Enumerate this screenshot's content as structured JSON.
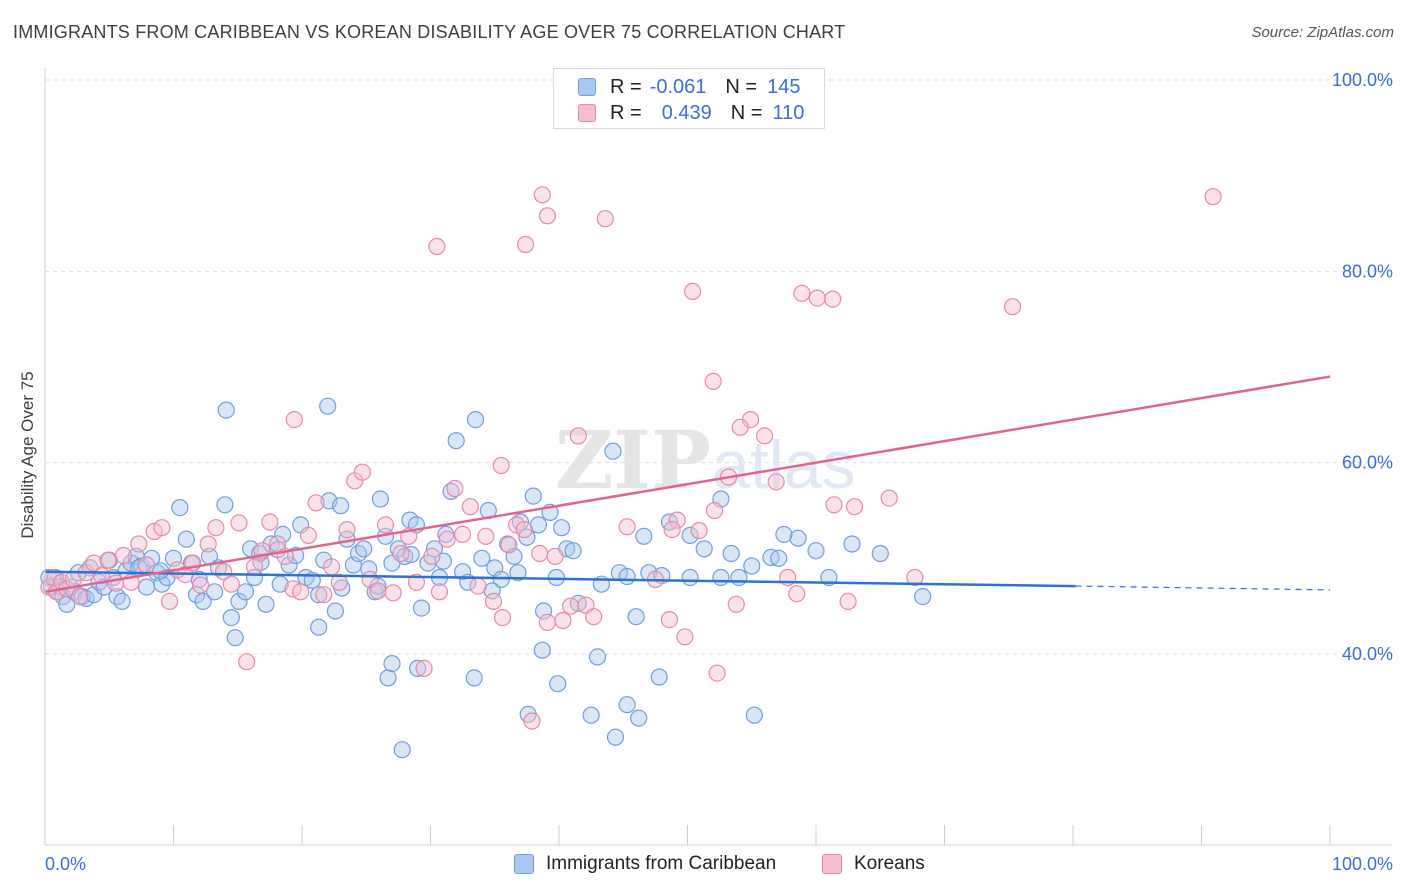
{
  "header": {
    "title": "IMMIGRANTS FROM CARIBBEAN VS KOREAN DISABILITY AGE OVER 75 CORRELATION CHART",
    "source": "Source: ZipAtlas.com"
  },
  "watermark": {
    "text_bold": "ZIP",
    "text_light": "atlas"
  },
  "legend": {
    "rows": [
      {
        "r_label": "R =",
        "r_value": "-0.061",
        "n_label": "N =",
        "n_value": "145"
      },
      {
        "r_label": "R =",
        "r_value": "0.439",
        "n_label": "N =",
        "n_value": "110"
      }
    ]
  },
  "colors": {
    "blue_fill": "#a9c8f0",
    "blue_stroke": "#6f9fdc",
    "blue_line": "#2f72d0",
    "pink_fill": "#f6bfd0",
    "pink_stroke": "#e68aa8",
    "pink_line": "#e0648e",
    "tick_label": "#3a6fd8",
    "grid": "#dcdcdc"
  },
  "chart_data": {
    "type": "scatter",
    "title": "IMMIGRANTS FROM CARIBBEAN VS KOREAN DISABILITY AGE OVER 75 CORRELATION CHART",
    "xlabel": "",
    "ylabel": "Disability Age Over 75",
    "xlim": [
      0,
      100
    ],
    "ylim": [
      20,
      102
    ],
    "x_tick_labels": [
      "0.0%",
      "100.0%"
    ],
    "y_ticks": [
      40,
      60,
      80,
      100
    ],
    "y_tick_labels": [
      "40.0%",
      "60.0%",
      "80.0%",
      "100.0%"
    ],
    "grid": true,
    "legend_position": "top-center",
    "series": [
      {
        "name": "Immigrants from Caribbean",
        "color": "blue",
        "trend": {
          "x": [
            0,
            80.2
          ],
          "y": [
            48.6,
            47.1
          ],
          "dashed_extension_to_x": 100,
          "dashed_y_end": 46.7
        },
        "points": [
          [
            0.3,
            48
          ],
          [
            0.5,
            47
          ],
          [
            0.8,
            48
          ],
          [
            1,
            46.5
          ],
          [
            1.2,
            47
          ],
          [
            1.4,
            46
          ],
          [
            1.7,
            45.2
          ],
          [
            2,
            47
          ],
          [
            2.3,
            46.5
          ],
          [
            2.6,
            48.5
          ],
          [
            2.9,
            46
          ],
          [
            3.2,
            45.8
          ],
          [
            3.5,
            49
          ],
          [
            3.8,
            46.2
          ],
          [
            4.2,
            47.5
          ],
          [
            4.6,
            47
          ],
          [
            5,
            49.8
          ],
          [
            5.3,
            48
          ],
          [
            5.6,
            46
          ],
          [
            6,
            45.5
          ],
          [
            6.3,
            48.7
          ],
          [
            6.7,
            49.5
          ],
          [
            7.1,
            50.2
          ],
          [
            7.5,
            49.2
          ],
          [
            7.9,
            47
          ],
          [
            8.3,
            50
          ],
          [
            8.7,
            48.5
          ],
          [
            9.1,
            47.3
          ],
          [
            9.5,
            48
          ],
          [
            10,
            50
          ],
          [
            10.5,
            55.3
          ],
          [
            11,
            52
          ],
          [
            11.4,
            49.5
          ],
          [
            11.8,
            46.2
          ],
          [
            12.3,
            45.5
          ],
          [
            12.8,
            50.2
          ],
          [
            13.2,
            46.5
          ],
          [
            13.5,
            49
          ],
          [
            14,
            55.6
          ],
          [
            14.5,
            43.8
          ],
          [
            14.8,
            41.7
          ],
          [
            15.1,
            45.5
          ],
          [
            15.6,
            46.5
          ],
          [
            16,
            51
          ],
          [
            16.3,
            48
          ],
          [
            16.7,
            50.5
          ],
          [
            17.2,
            45.2
          ],
          [
            17.6,
            51.5
          ],
          [
            18.1,
            50.9
          ],
          [
            18.5,
            52.5
          ],
          [
            19,
            49.3
          ],
          [
            19.5,
            50.3
          ],
          [
            19.9,
            53.5
          ],
          [
            20.3,
            48
          ],
          [
            20.8,
            47.7
          ],
          [
            21.3,
            42.8
          ],
          [
            21.7,
            49.8
          ],
          [
            22.1,
            56
          ],
          [
            22.6,
            44.5
          ],
          [
            23,
            55.5
          ],
          [
            23.5,
            52
          ],
          [
            24,
            49.3
          ],
          [
            24.4,
            50.5
          ],
          [
            24.8,
            51
          ],
          [
            25.2,
            48.9
          ],
          [
            25.7,
            46.5
          ],
          [
            26.1,
            56.2
          ],
          [
            26.5,
            52.3
          ],
          [
            27,
            49.5
          ],
          [
            27.5,
            51
          ],
          [
            28,
            50.2
          ],
          [
            28.4,
            54
          ],
          [
            28.9,
            53.5
          ],
          [
            29.3,
            44.8
          ],
          [
            29.8,
            49.5
          ],
          [
            30.3,
            51
          ],
          [
            30.7,
            48
          ],
          [
            31.2,
            52.5
          ],
          [
            31.6,
            57
          ],
          [
            32,
            62.3
          ],
          [
            32.5,
            48.6
          ],
          [
            32.9,
            47.5
          ],
          [
            33.5,
            64.5
          ],
          [
            34,
            50
          ],
          [
            34.5,
            55
          ],
          [
            35,
            49
          ],
          [
            35.5,
            47.8
          ],
          [
            36,
            51.5
          ],
          [
            36.5,
            50.2
          ],
          [
            37,
            53.8
          ],
          [
            37.5,
            52.2
          ],
          [
            38,
            56.5
          ],
          [
            38.4,
            53.5
          ],
          [
            38.8,
            44.5
          ],
          [
            39.3,
            54.8
          ],
          [
            39.8,
            48
          ],
          [
            40.2,
            53.2
          ],
          [
            40.6,
            51
          ],
          [
            41.1,
            50.8
          ],
          [
            44.2,
            61.2
          ],
          [
            44.7,
            48.5
          ],
          [
            45.3,
            48.1
          ],
          [
            46,
            43.9
          ],
          [
            46.6,
            52.3
          ],
          [
            47,
            48.5
          ],
          [
            48,
            48.2
          ],
          [
            48.6,
            53.8
          ],
          [
            50.2,
            52.4
          ],
          [
            51.3,
            51
          ],
          [
            52.6,
            56.2
          ],
          [
            53.4,
            50.5
          ],
          [
            54,
            48
          ],
          [
            56.5,
            50.1
          ],
          [
            58.6,
            52.1
          ],
          [
            62.8,
            51.5
          ],
          [
            65,
            50.5
          ],
          [
            68.3,
            46
          ],
          [
            55,
            49.2
          ],
          [
            57.5,
            52.5
          ],
          [
            60,
            50.8
          ],
          [
            14.1,
            65.5
          ],
          [
            22,
            65.9
          ],
          [
            26.7,
            37.5
          ],
          [
            27,
            39
          ],
          [
            27.8,
            30
          ],
          [
            29,
            38.5
          ],
          [
            33.4,
            37.5
          ],
          [
            37.6,
            33.7
          ],
          [
            38.7,
            40.4
          ],
          [
            39.9,
            36.9
          ],
          [
            42.5,
            33.6
          ],
          [
            43,
            39.7
          ],
          [
            44.4,
            31.3
          ],
          [
            45.3,
            34.7
          ],
          [
            46.2,
            33.3
          ],
          [
            47.8,
            37.6
          ],
          [
            50.2,
            48
          ],
          [
            52.6,
            48
          ],
          [
            55.2,
            33.6
          ],
          [
            61,
            48
          ],
          [
            7.3,
            49
          ],
          [
            9,
            48.7
          ],
          [
            12,
            47.8
          ],
          [
            16.8,
            49.6
          ],
          [
            18.3,
            47.3
          ],
          [
            21.3,
            46.2
          ],
          [
            23.1,
            46.9
          ],
          [
            25.9,
            47.1
          ],
          [
            28.5,
            50.4
          ],
          [
            31,
            49.7
          ],
          [
            34.8,
            46.6
          ],
          [
            36.8,
            48.5
          ],
          [
            41.5,
            45.3
          ],
          [
            43.3,
            47.3
          ],
          [
            57.1,
            50
          ]
        ]
      },
      {
        "name": "Koreans",
        "color": "pink",
        "trend": {
          "x": [
            0,
            100
          ],
          "y": [
            46.5,
            69
          ]
        },
        "points": [
          [
            0.3,
            47
          ],
          [
            0.6,
            48
          ],
          [
            0.9,
            46.5
          ],
          [
            1.3,
            47.5
          ],
          [
            1.7,
            46.8
          ],
          [
            2.2,
            47.8
          ],
          [
            2.7,
            46
          ],
          [
            3.2,
            48.5
          ],
          [
            3.8,
            49.5
          ],
          [
            4.4,
            48.2
          ],
          [
            4.9,
            49.8
          ],
          [
            5.5,
            47.4
          ],
          [
            6.1,
            50.3
          ],
          [
            6.7,
            47.5
          ],
          [
            7.3,
            51.5
          ],
          [
            7.9,
            49.3
          ],
          [
            8.5,
            52.8
          ],
          [
            9.1,
            53.2
          ],
          [
            9.7,
            45.5
          ],
          [
            10.3,
            48.8
          ],
          [
            10.9,
            48.3
          ],
          [
            11.5,
            49.5
          ],
          [
            12.1,
            47.2
          ],
          [
            12.7,
            51.5
          ],
          [
            13.3,
            53.2
          ],
          [
            13.9,
            48.6
          ],
          [
            14.5,
            47.3
          ],
          [
            15.1,
            53.7
          ],
          [
            15.7,
            39.2
          ],
          [
            16.3,
            49.1
          ],
          [
            16.9,
            50.8
          ],
          [
            17.5,
            53.8
          ],
          [
            18.1,
            51.5
          ],
          [
            18.7,
            50.2
          ],
          [
            19.3,
            46.8
          ],
          [
            19.9,
            46.5
          ],
          [
            20.5,
            52.4
          ],
          [
            21.1,
            55.8
          ],
          [
            21.7,
            46.2
          ],
          [
            22.3,
            49.1
          ],
          [
            22.9,
            47.5
          ],
          [
            23.5,
            53
          ],
          [
            24.1,
            58.1
          ],
          [
            24.7,
            59
          ],
          [
            25.3,
            47.8
          ],
          [
            25.9,
            46.6
          ],
          [
            26.5,
            53.5
          ],
          [
            27.1,
            46.4
          ],
          [
            27.7,
            50.5
          ],
          [
            28.3,
            52.3
          ],
          [
            28.9,
            47.5
          ],
          [
            29.5,
            38.5
          ],
          [
            30.1,
            50.2
          ],
          [
            30.7,
            46.5
          ],
          [
            31.3,
            52
          ],
          [
            31.9,
            57.3
          ],
          [
            32.5,
            52.5
          ],
          [
            33.1,
            55.4
          ],
          [
            33.7,
            47.1
          ],
          [
            34.3,
            52.3
          ],
          [
            34.9,
            45.5
          ],
          [
            35.5,
            59.7
          ],
          [
            36.1,
            51.4
          ],
          [
            36.7,
            53.5
          ],
          [
            37.3,
            53
          ],
          [
            37.9,
            33
          ],
          [
            38.5,
            50.5
          ],
          [
            39.1,
            43.3
          ],
          [
            39.7,
            50.2
          ],
          [
            40.3,
            43.5
          ],
          [
            40.9,
            45
          ],
          [
            41.5,
            62.8
          ],
          [
            42.1,
            45.1
          ],
          [
            42.7,
            43.9
          ],
          [
            49.2,
            54
          ],
          [
            48.8,
            53
          ],
          [
            50.9,
            52.9
          ],
          [
            52.1,
            55
          ],
          [
            53.2,
            58.5
          ],
          [
            53.8,
            45.2
          ],
          [
            54.9,
            64.5
          ],
          [
            56,
            62.8
          ],
          [
            56.9,
            58
          ],
          [
            57.8,
            48
          ],
          [
            58.5,
            46.3
          ],
          [
            61.4,
            55.6
          ],
          [
            62.5,
            45.5
          ],
          [
            63,
            55.4
          ],
          [
            65.7,
            56.3
          ],
          [
            67.7,
            48
          ],
          [
            38.7,
            88
          ],
          [
            39.1,
            85.8
          ],
          [
            37.4,
            82.8
          ],
          [
            30.5,
            82.6
          ],
          [
            43.6,
            85.5
          ],
          [
            50.4,
            77.9
          ],
          [
            58.9,
            77.7
          ],
          [
            60.1,
            77.2
          ],
          [
            61.3,
            77.1
          ],
          [
            75.3,
            76.3
          ],
          [
            90.9,
            87.8
          ],
          [
            52,
            68.5
          ],
          [
            54.1,
            63.7
          ],
          [
            19.4,
            64.5
          ],
          [
            45.3,
            53.3
          ],
          [
            47.5,
            47.8
          ],
          [
            49.8,
            41.8
          ],
          [
            52.3,
            38
          ],
          [
            35.6,
            43.8
          ],
          [
            48.6,
            43.6
          ]
        ]
      }
    ]
  },
  "bottom_legend": {
    "items": [
      {
        "label": "Immigrants from Caribbean"
      },
      {
        "label": "Koreans"
      }
    ]
  }
}
